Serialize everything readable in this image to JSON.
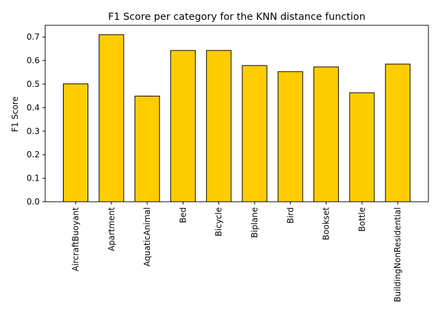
{
  "chart_data": {
    "type": "bar",
    "title": "F1 Score per category for the KNN distance function",
    "xlabel": "",
    "ylabel": "F1 Score",
    "categories": [
      "AircraftBuoyant",
      "Apartment",
      "AquaticAnimal",
      "Bed",
      "Bicycle",
      "Biplane",
      "Bird",
      "Bookset",
      "Bottle",
      "BuildingNonResidential"
    ],
    "values": [
      0.501,
      0.71,
      0.449,
      0.643,
      0.643,
      0.579,
      0.553,
      0.573,
      0.463,
      0.585
    ],
    "ylim": [
      0,
      0.75
    ],
    "yticks": [
      0.0,
      0.1,
      0.2,
      0.3,
      0.4,
      0.5,
      0.6,
      0.7
    ],
    "ytick_labels": [
      "0.0",
      "0.1",
      "0.2",
      "0.3",
      "0.4",
      "0.5",
      "0.6",
      "0.7"
    ],
    "grid": false,
    "legend": "none",
    "bar_color": "#ffcc00",
    "edge_color": "#000000"
  }
}
